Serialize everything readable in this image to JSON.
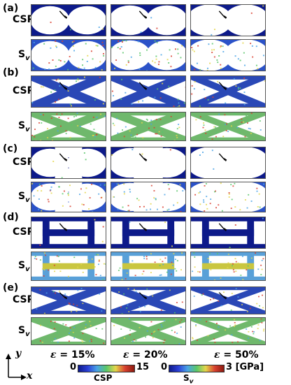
{
  "panels": [
    {
      "label": "(a)",
      "rows": [
        "CSP",
        "S"
      ],
      "key": "a"
    },
    {
      "label": "(b)",
      "rows": [
        "CSP",
        "S"
      ],
      "key": "b"
    },
    {
      "label": "(c)",
      "rows": [
        "CSP",
        "S"
      ],
      "key": "c"
    },
    {
      "label": "(d)",
      "rows": [
        "CSP",
        "S"
      ],
      "key": "d"
    },
    {
      "label": "(e)",
      "rows": [
        "CSP",
        "S"
      ],
      "key": "e"
    }
  ],
  "row_label_csp": "CSP",
  "row_label_sv": "S",
  "row_label_sv_sub": "v",
  "strains": {
    "symbol": "ε",
    "values": [
      "= 15%",
      "= 20%",
      "= 50%"
    ]
  },
  "colorbar_csp": {
    "min": "0",
    "max": "15",
    "label": "CSP"
  },
  "colorbar_sv": {
    "min": "0",
    "max": "3 [GPa]",
    "label": "S",
    "label_sub": "v"
  },
  "axes": {
    "y": "y",
    "x": "x"
  },
  "colors": {
    "dark_blue": "#0d1a8a",
    "light_blue": "#4aa3e6",
    "green": "#59c76a",
    "yellow": "#e4d64a",
    "red": "#d94030"
  }
}
